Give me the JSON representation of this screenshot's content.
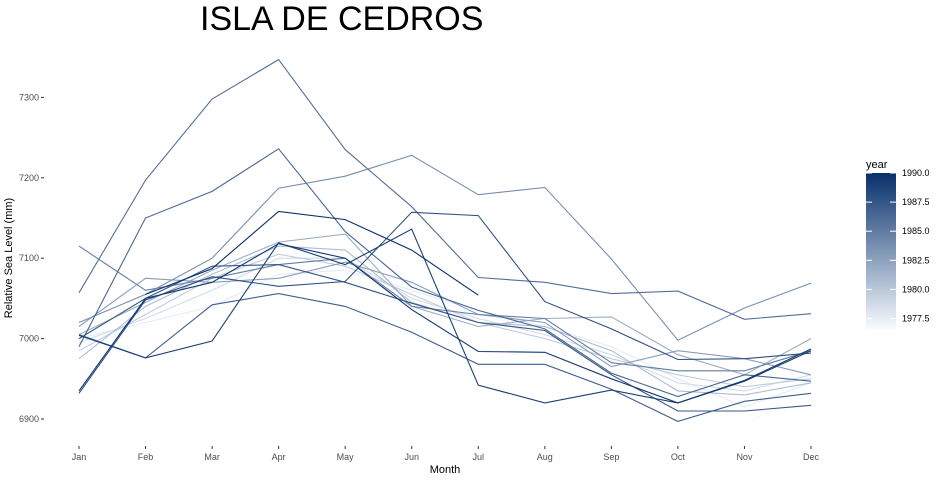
{
  "chart_data": {
    "type": "line",
    "title": "ISLA DE CEDROS",
    "xlabel": "Month",
    "ylabel": "Relative Sea Level (mm)",
    "categories": [
      "Jan",
      "Feb",
      "Mar",
      "Apr",
      "May",
      "Jun",
      "Jul",
      "Aug",
      "Sep",
      "Oct",
      "Nov",
      "Dec"
    ],
    "ylim": [
      6865,
      7360
    ],
    "yticks": [
      6900,
      7000,
      7100,
      7200,
      7300
    ],
    "ytick_labels": [
      "6900",
      "7000",
      "7100",
      "7200",
      "7300"
    ],
    "grid": false,
    "legend": {
      "title": "year",
      "position": "right",
      "type": "colorbar",
      "range": [
        1977,
        1990
      ],
      "ticks": [
        1977.5,
        1980.0,
        1982.5,
        1985.0,
        1987.5,
        1990.0
      ],
      "tick_labels": [
        "1977.5",
        "1980.0",
        "1982.5",
        "1985.0",
        "1987.5",
        "1990.0"
      ],
      "colors": [
        "#f7fbff",
        "#08306b"
      ]
    },
    "series": [
      {
        "year": 1977,
        "values": [
          7005,
          7015,
          7055,
          7110,
          7095,
          7060,
          7030,
          7010,
          6985,
          6960,
          6890,
          6950
        ]
      },
      {
        "year": 1978,
        "values": [
          7000,
          7020,
          7040,
          7080,
          7085,
          7060,
          7035,
          7015,
          6990,
          6950,
          6915,
          6945
        ]
      },
      {
        "year": 1979,
        "values": [
          6995,
          7025,
          7060,
          7100,
          7100,
          7050,
          7025,
          7005,
          6980,
          6945,
          6935,
          6955
        ]
      },
      {
        "year": 1980,
        "values": [
          6985,
          7030,
          7075,
          7105,
          7090,
          7055,
          7020,
          7000,
          6975,
          6955,
          6940,
          6950
        ]
      },
      {
        "year": 1981,
        "values": [
          6975,
          7040,
          7080,
          7115,
          7110,
          7045,
          7020,
          7015,
          6985,
          6935,
          6930,
          6945
        ]
      },
      {
        "year": 1982,
        "values": [
          7005,
          7045,
          7085,
          7120,
          7130,
          7040,
          7015,
          7025,
          7027,
          6980,
          6955,
          7000
        ]
      },
      {
        "year": 1983,
        "values": [
          7015,
          7075,
          7070,
          7075,
          7095,
          7070,
          7030,
          7020,
          6965,
          6985,
          6975,
          6955
        ]
      },
      {
        "year": 1984,
        "values": [
          7020,
          7055,
          7100,
          7187,
          7202,
          7228,
          7179,
          7188,
          7099,
          6998,
          7038,
          7069
        ]
      },
      {
        "year": 1985,
        "values": [
          7115,
          7060,
          7075,
          7092,
          7100,
          7040,
          7030,
          7025,
          6970,
          6960,
          6960,
          6985
        ]
      },
      {
        "year": 1986,
        "values": [
          7057,
          7197,
          7298,
          7347,
          7235,
          7164,
          7076,
          7070,
          7056,
          7059,
          7024,
          7031
        ]
      },
      {
        "year": 1986.5,
        "values": [
          6990,
          7150,
          7183,
          7236,
          7133,
          7064,
          7035,
          7012,
          6957,
          6928,
          6955,
          6947
        ]
      },
      {
        "year": 1987,
        "values": [
          7005,
          6976,
          7042,
          7056,
          7040,
          7008,
          6968,
          6968,
          6937,
          6897,
          6922,
          6932
        ]
      },
      {
        "year": 1987.5,
        "values": [
          7000,
          7050,
          7090,
          7092,
          7070,
          7044,
          7020,
          7010,
          6955,
          6910,
          6910,
          6917
        ]
      },
      {
        "year": 1988,
        "values": [
          6932,
          7048,
          7077,
          7065,
          7071,
          7157,
          7153,
          7046,
          7012,
          6974,
          6975,
          6982
        ]
      },
      {
        "year": 1989,
        "values": [
          7004,
          6976,
          6997,
          7119,
          7092,
          7136,
          6942,
          6920,
          6936,
          6920,
          6947,
          6985
        ]
      },
      {
        "year": 1989.5,
        "values": [
          6935,
          7050,
          7070,
          7118,
          7100,
          7036,
          6984,
          6983,
          6950,
          6920,
          6948,
          6987
        ]
      },
      {
        "year": 1990,
        "values": [
          null,
          7055,
          7087,
          7158,
          7148,
          7110,
          7054,
          null,
          null,
          null,
          null,
          null
        ]
      }
    ]
  }
}
